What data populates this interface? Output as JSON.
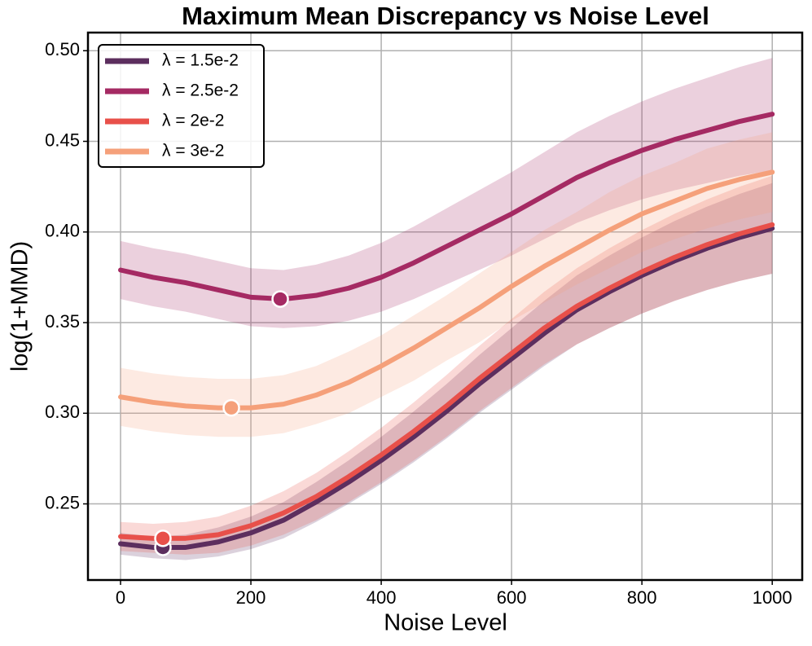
{
  "chart_data": {
    "type": "line",
    "title": "Maximum Mean Discrepancy vs Noise Level",
    "x_label": "Noise Level",
    "y_label": "log(1+MMD)",
    "x": [
      0,
      50,
      100,
      150,
      200,
      250,
      300,
      350,
      400,
      450,
      500,
      550,
      600,
      650,
      700,
      750,
      800,
      850,
      900,
      950,
      1000
    ],
    "series": [
      {
        "name": "λ = 1.5e-2",
        "color": "#5c2e5e",
        "values": [
          0.228,
          0.226,
          0.226,
          0.229,
          0.234,
          0.241,
          0.251,
          0.262,
          0.274,
          0.287,
          0.301,
          0.316,
          0.33,
          0.344,
          0.357,
          0.367,
          0.376,
          0.384,
          0.391,
          0.397,
          0.402
        ],
        "errors": [
          0.006,
          0.006,
          0.007,
          0.008,
          0.009,
          0.01,
          0.011,
          0.012,
          0.013,
          0.014,
          0.015,
          0.016,
          0.017,
          0.018,
          0.019,
          0.02,
          0.021,
          0.022,
          0.023,
          0.024,
          0.025
        ],
        "marker": {
          "x": 65,
          "y": 0.226
        }
      },
      {
        "name": "λ = 2.5e-2",
        "color": "#a52a63",
        "values": [
          0.379,
          0.375,
          0.372,
          0.368,
          0.364,
          0.363,
          0.365,
          0.369,
          0.375,
          0.383,
          0.392,
          0.401,
          0.41,
          0.42,
          0.43,
          0.438,
          0.445,
          0.451,
          0.456,
          0.461,
          0.465
        ],
        "errors": [
          0.016,
          0.016,
          0.016,
          0.016,
          0.016,
          0.016,
          0.017,
          0.018,
          0.019,
          0.02,
          0.021,
          0.022,
          0.023,
          0.024,
          0.025,
          0.026,
          0.027,
          0.028,
          0.029,
          0.03,
          0.031
        ],
        "marker": {
          "x": 245,
          "y": 0.363
        }
      },
      {
        "name": "λ = 2e-2",
        "color": "#e8504a",
        "values": [
          0.232,
          0.231,
          0.231,
          0.233,
          0.238,
          0.245,
          0.254,
          0.265,
          0.277,
          0.29,
          0.304,
          0.319,
          0.333,
          0.347,
          0.359,
          0.369,
          0.378,
          0.386,
          0.393,
          0.399,
          0.404
        ],
        "errors": [
          0.008,
          0.008,
          0.009,
          0.01,
          0.011,
          0.012,
          0.013,
          0.014,
          0.015,
          0.016,
          0.017,
          0.018,
          0.019,
          0.02,
          0.021,
          0.022,
          0.023,
          0.024,
          0.025,
          0.026,
          0.027
        ],
        "marker": {
          "x": 65,
          "y": 0.231
        }
      },
      {
        "name": "λ = 3e-2",
        "color": "#f5a07a",
        "values": [
          0.309,
          0.306,
          0.304,
          0.303,
          0.303,
          0.305,
          0.31,
          0.317,
          0.326,
          0.336,
          0.347,
          0.358,
          0.37,
          0.381,
          0.391,
          0.401,
          0.41,
          0.417,
          0.424,
          0.429,
          0.433
        ],
        "errors": [
          0.016,
          0.016,
          0.016,
          0.016,
          0.016,
          0.016,
          0.016,
          0.017,
          0.017,
          0.018,
          0.018,
          0.019,
          0.019,
          0.02,
          0.02,
          0.021,
          0.021,
          0.021,
          0.022,
          0.022,
          0.022
        ],
        "marker": {
          "x": 170,
          "y": 0.303
        }
      }
    ],
    "xlim": [
      -50,
      1046
    ],
    "ylim": [
      0.208,
      0.51
    ],
    "xticks": [
      0,
      200,
      400,
      600,
      800,
      1000
    ],
    "yticks": [
      0.25,
      {
        "value": 0.3,
        "label": "0.30"
      },
      0.35,
      {
        "value": 0.4,
        "label": "0.40"
      },
      0.45,
      {
        "value": 0.5,
        "label": "0.50"
      }
    ],
    "grid": true,
    "legend": "upper left"
  }
}
